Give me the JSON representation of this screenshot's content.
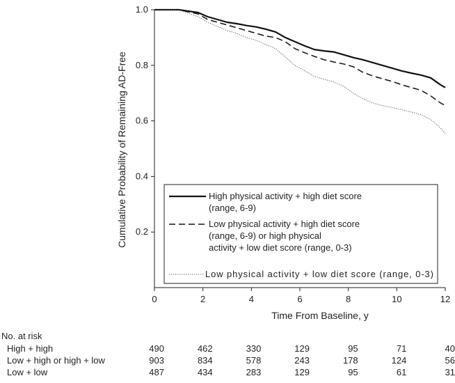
{
  "chart_data": {
    "type": "line",
    "ylabel": "Cumulative Probability of Remaining AD-Free",
    "xlabel": "Time From Baseline, y",
    "xlim": [
      0,
      12
    ],
    "ylim": [
      0,
      1.0
    ],
    "x_ticks": [
      0,
      2,
      4,
      6,
      8,
      10,
      12
    ],
    "y_ticks": [
      0.2,
      0.4,
      0.6,
      0.8,
      1.0
    ],
    "y_tick_labels": [
      "0.2",
      "0.4",
      "0.6",
      "0.8",
      "1.0"
    ],
    "grid": false,
    "legend_position": "bottom-right",
    "series": [
      {
        "name": "High physical activity + high diet score (range, 6-9)",
        "legend_lines": [
          "High physical activity + high diet score",
          "(range, 6-9)"
        ],
        "style": "solid",
        "color": "#111111",
        "x": [
          0,
          1.0,
          1.8,
          2.2,
          2.6,
          3.0,
          3.4,
          3.8,
          4.2,
          4.6,
          5.0,
          5.4,
          5.8,
          6.2,
          6.6,
          7.0,
          7.4,
          7.8,
          8.2,
          8.6,
          9.0,
          9.4,
          9.8,
          10.2,
          10.6,
          11.0,
          11.4,
          11.8,
          12.0
        ],
        "y": [
          1.0,
          1.0,
          0.99,
          0.975,
          0.965,
          0.955,
          0.95,
          0.943,
          0.938,
          0.93,
          0.92,
          0.9,
          0.885,
          0.87,
          0.857,
          0.852,
          0.848,
          0.838,
          0.828,
          0.82,
          0.81,
          0.8,
          0.79,
          0.78,
          0.772,
          0.765,
          0.755,
          0.73,
          0.72
        ]
      },
      {
        "name": "Low physical activity + high diet score (range, 6-9) or high physical activity + low diet score (range, 0-3)",
        "legend_lines": [
          "Low physical activity + high diet score",
          "(range, 6-9) or high physical",
          "activity + low diet score (range, 0-3)"
        ],
        "style": "dashed",
        "color": "#111111",
        "x": [
          0,
          1.0,
          1.8,
          2.2,
          2.6,
          3.0,
          3.4,
          3.8,
          4.2,
          4.6,
          5.0,
          5.4,
          5.8,
          6.2,
          6.6,
          7.0,
          7.4,
          7.8,
          8.2,
          8.6,
          9.0,
          9.4,
          9.8,
          10.2,
          10.6,
          11.0,
          11.4,
          11.8,
          12.0
        ],
        "y": [
          1.0,
          1.0,
          0.985,
          0.965,
          0.955,
          0.945,
          0.935,
          0.925,
          0.915,
          0.905,
          0.9,
          0.885,
          0.86,
          0.845,
          0.832,
          0.82,
          0.812,
          0.805,
          0.795,
          0.775,
          0.762,
          0.752,
          0.742,
          0.73,
          0.72,
          0.71,
          0.69,
          0.665,
          0.655
        ]
      },
      {
        "name": "Low physical activity + low diet score (range, 0-3)",
        "legend_lines": [
          "Low physical activity + low diet score (range, 0-3)"
        ],
        "style": "dotted",
        "color": "#555555",
        "x": [
          0,
          1.0,
          1.8,
          2.2,
          2.6,
          3.0,
          3.4,
          3.8,
          4.2,
          4.6,
          5.0,
          5.4,
          5.8,
          6.2,
          6.6,
          7.0,
          7.4,
          7.8,
          8.2,
          8.6,
          9.0,
          9.4,
          9.8,
          10.2,
          10.6,
          11.0,
          11.4,
          11.8,
          12.0
        ],
        "y": [
          1.0,
          1.0,
          0.975,
          0.955,
          0.94,
          0.925,
          0.915,
          0.9,
          0.89,
          0.875,
          0.86,
          0.83,
          0.8,
          0.78,
          0.76,
          0.75,
          0.74,
          0.725,
          0.7,
          0.68,
          0.665,
          0.655,
          0.648,
          0.64,
          0.632,
          0.622,
          0.605,
          0.575,
          0.555
        ]
      }
    ],
    "at_risk": {
      "title": "No. at risk",
      "timepoints": [
        0,
        2,
        4,
        6,
        8,
        10,
        12
      ],
      "rows": [
        {
          "label": "High + high",
          "values": [
            "490",
            "462",
            "330",
            "129",
            "95",
            "71",
            "40"
          ]
        },
        {
          "label": "Low + high or high + low",
          "values": [
            "903",
            "834",
            "578",
            "243",
            "178",
            "124",
            "56"
          ]
        },
        {
          "label": "Low + low",
          "values": [
            "487",
            "434",
            "283",
            "129",
            "95",
            "61",
            "31"
          ]
        }
      ]
    }
  }
}
